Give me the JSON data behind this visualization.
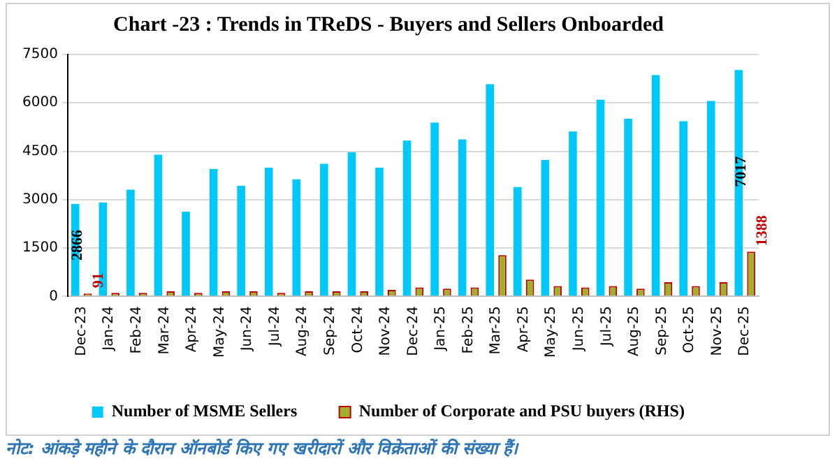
{
  "chart_data": {
    "type": "bar",
    "title": "Chart -23 : Trends in TReDS - Buyers and Sellers Onboarded",
    "categories": [
      "Dec-23",
      "Jan-24",
      "Feb-24",
      "Mar-24",
      "Apr-24",
      "May-24",
      "Jun-24",
      "Jul-24",
      "Aug-24",
      "Sep-24",
      "Oct-24",
      "Nov-24",
      "Dec-24",
      "Jan-25",
      "Feb-25",
      "Mar-25",
      "Apr-25",
      "May-25",
      "Jun-25",
      "Jul-25",
      "Aug-25",
      "Sep-25",
      "Oct-25",
      "Nov-25",
      "Dec-25"
    ],
    "series": [
      {
        "name": "Number of MSME Sellers",
        "color": "#00c8f8",
        "values": [
          2866,
          2910,
          3310,
          4390,
          2630,
          3950,
          3430,
          3990,
          3630,
          4110,
          4470,
          3990,
          4830,
          5390,
          4870,
          6580,
          3390,
          4230,
          5110,
          6100,
          5510,
          6860,
          5430,
          6060,
          7017
        ],
        "value_labels": [
          "2866",
          null,
          null,
          null,
          null,
          null,
          null,
          null,
          null,
          null,
          null,
          null,
          null,
          null,
          null,
          null,
          null,
          null,
          null,
          null,
          null,
          null,
          null,
          null,
          "7017"
        ]
      },
      {
        "name": "Number of Corporate and PSU buyers (RHS)",
        "color": "#a0b02a",
        "values": [
          91,
          110,
          110,
          160,
          110,
          160,
          160,
          110,
          160,
          160,
          160,
          200,
          280,
          240,
          280,
          1280,
          520,
          320,
          280,
          320,
          240,
          440,
          320,
          440,
          1388
        ],
        "value_labels": [
          "91",
          null,
          null,
          null,
          null,
          null,
          null,
          null,
          null,
          null,
          null,
          null,
          null,
          null,
          null,
          null,
          null,
          null,
          null,
          null,
          null,
          null,
          null,
          null,
          "1388"
        ]
      }
    ],
    "ylim": [
      0,
      7500
    ],
    "yticks": [
      0,
      1500,
      3000,
      4500,
      6000,
      7500
    ],
    "grid": "y",
    "legend": "bottom",
    "annotations": [
      "नोट: आंकड़े महीने के दौरान ऑनबोर्ड किए गए खरीदारों और विक्रेताओं की संख्या हैं।"
    ]
  }
}
